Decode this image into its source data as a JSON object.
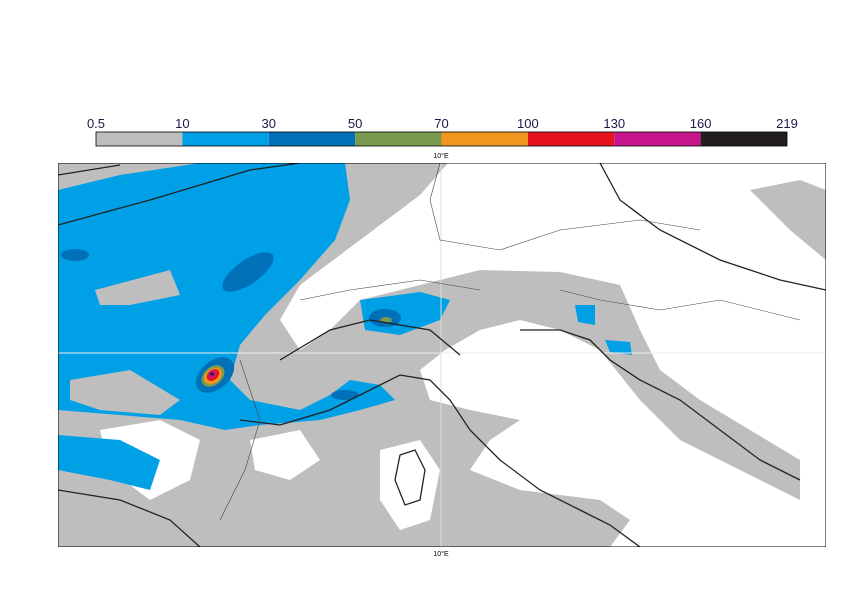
{
  "colorbar": {
    "levels": [
      0.5,
      10,
      30,
      50,
      70,
      100,
      130,
      160,
      219
    ],
    "colors": [
      "#bebebe",
      "#00a0e6",
      "#0070b8",
      "#7a9a50",
      "#f0961e",
      "#e6141e",
      "#c8148c",
      "#231f20"
    ]
  },
  "map": {
    "lon_label_top": "10°E",
    "lon_label_bottom": "10°E"
  }
}
